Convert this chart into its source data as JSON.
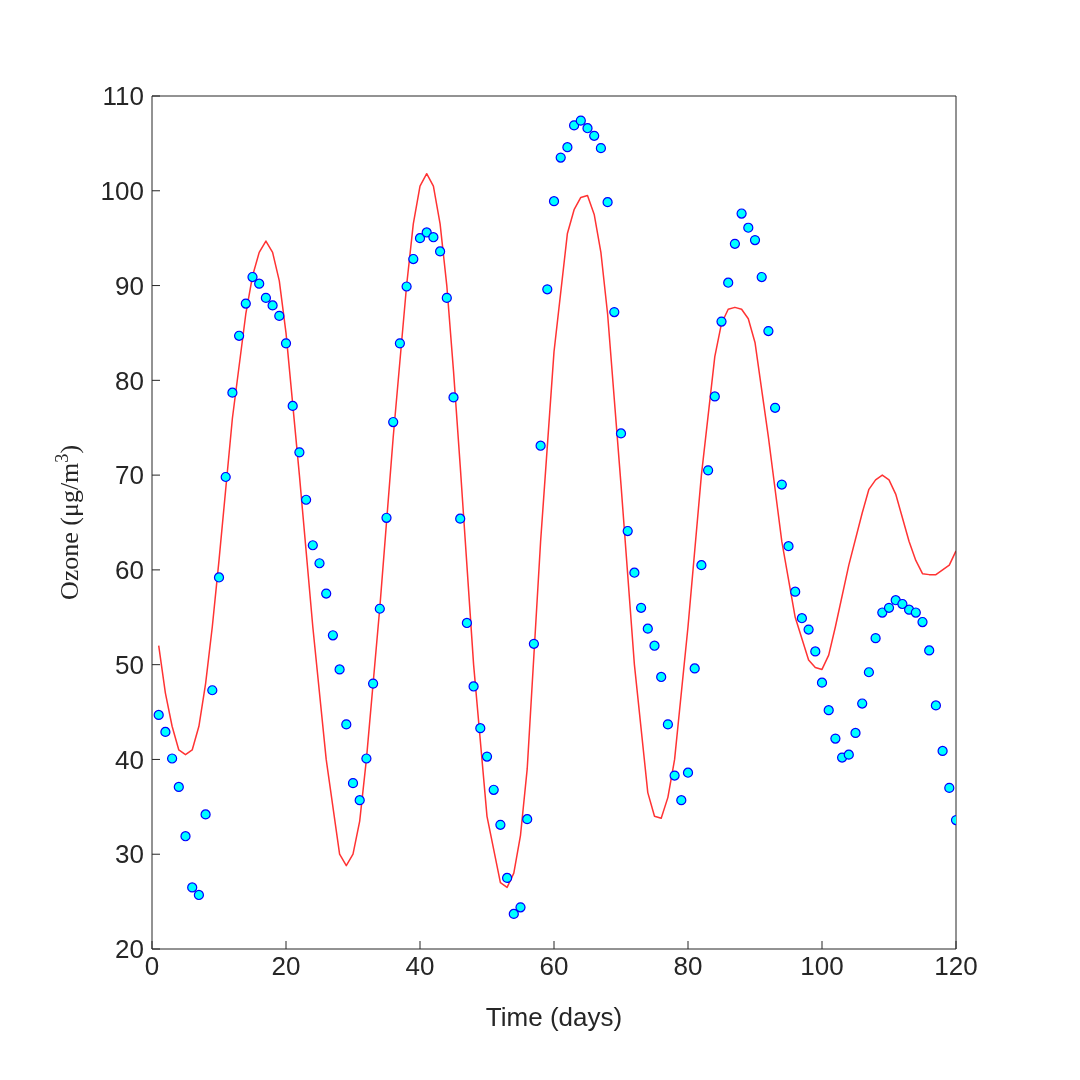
{
  "chart_data": {
    "type": "scatter",
    "xlabel": "Time (days)",
    "ylabel": "Ozone (μg/m$^{3}$)",
    "xlim": [
      0,
      120
    ],
    "xticks": [
      0,
      20,
      40,
      60,
      80,
      100,
      120
    ],
    "ylim": [
      20,
      110
    ],
    "yticks": [
      20,
      30,
      40,
      50,
      60,
      70,
      80,
      90,
      100,
      110
    ],
    "grid": false,
    "marker": "circle",
    "series": [
      {
        "type": "scatter",
        "color": "#00ffff",
        "x": [
          1,
          2,
          3,
          4,
          5,
          6,
          7,
          8,
          9,
          10,
          11,
          12,
          13,
          14,
          15,
          16,
          17,
          18,
          19,
          20,
          21,
          22,
          23,
          24,
          25,
          26,
          27,
          28,
          29,
          30,
          31,
          32,
          33,
          34,
          35,
          36,
          37,
          38,
          39,
          40,
          41,
          42,
          43,
          44,
          45,
          46,
          47,
          48,
          49,
          50,
          51,
          52,
          53,
          54,
          55,
          56,
          57,
          58,
          59,
          60,
          61,
          62,
          63,
          64,
          65,
          66,
          67,
          68,
          69,
          70,
          71,
          72,
          73,
          74,
          75,
          76,
          77,
          78,
          79,
          80,
          81,
          82,
          83,
          84,
          85,
          86,
          87,
          88,
          89,
          90,
          91,
          92,
          93,
          94,
          95,
          96,
          97,
          98,
          99,
          100,
          101,
          102,
          103,
          104,
          105,
          106,
          107,
          108,
          109,
          110,
          111,
          112,
          113,
          114,
          115,
          116,
          117,
          118,
          119,
          120
        ],
        "values": [
          44.7,
          42.9,
          40.1,
          37.1,
          31.9,
          26.5,
          25.7,
          34.2,
          47.3,
          59.2,
          69.8,
          78.7,
          84.7,
          88.1,
          90.9,
          90.2,
          88.7,
          87.9,
          86.8,
          83.9,
          77.3,
          72.4,
          67.4,
          62.6,
          60.7,
          57.5,
          53.1,
          49.5,
          43.7,
          37.5,
          35.7,
          40.1,
          48.0,
          55.9,
          65.5,
          75.6,
          83.9,
          89.9,
          92.8,
          95.0,
          95.6,
          95.1,
          93.6,
          88.7,
          78.2,
          65.4,
          54.4,
          47.7,
          43.3,
          40.3,
          36.8,
          33.1,
          27.5,
          23.7,
          24.4,
          33.7,
          52.2,
          73.1,
          89.6,
          98.9,
          103.5,
          104.6,
          106.9,
          107.4,
          106.6,
          105.8,
          104.5,
          98.8,
          87.2,
          74.4,
          64.1,
          59.7,
          56.0,
          53.8,
          52.0,
          48.7,
          43.7,
          38.3,
          35.7,
          38.6,
          49.6,
          60.5,
          70.5,
          78.3,
          86.2,
          90.3,
          94.4,
          97.6,
          96.1,
          94.8,
          90.9,
          85.2,
          77.1,
          69.0,
          62.5,
          57.7,
          54.9,
          53.7,
          51.4,
          48.1,
          45.2,
          42.2,
          40.2,
          40.5,
          42.8,
          45.9,
          49.2,
          52.8,
          55.5,
          56.0,
          56.8,
          56.4,
          55.8,
          55.5,
          54.5,
          51.5,
          45.7,
          40.9,
          37.0,
          33.6
        ]
      },
      {
        "type": "line",
        "color": "#ff3333",
        "marker": "none",
        "line_style": "solid",
        "x": [
          1,
          2,
          3,
          4,
          5,
          6,
          7,
          8,
          9,
          10,
          12,
          14,
          15,
          16,
          17,
          18,
          19,
          20,
          22,
          24,
          26,
          28,
          29,
          30,
          31,
          32,
          34,
          36,
          38,
          39,
          40,
          41,
          42,
          43,
          44,
          45,
          46,
          48,
          50,
          52,
          53,
          54,
          55,
          56,
          58,
          60,
          62,
          63,
          64,
          65,
          66,
          67,
          68,
          70,
          72,
          74,
          75,
          76,
          77,
          78,
          80,
          82,
          84,
          85,
          86,
          87,
          88,
          89,
          90,
          92,
          94,
          96,
          98,
          99,
          100,
          101,
          102,
          104,
          106,
          107,
          108,
          109,
          110,
          111,
          112,
          113,
          114,
          115,
          116,
          117,
          118,
          119,
          120
        ],
        "values": [
          52,
          47,
          43.5,
          41,
          40.5,
          41,
          43.5,
          48,
          54,
          61,
          76,
          87,
          91,
          93.5,
          94.7,
          93.5,
          90.5,
          85,
          70,
          54,
          40,
          30,
          28.8,
          30,
          33.5,
          40,
          56,
          74,
          90,
          96.5,
          100.5,
          101.8,
          100.5,
          96.5,
          90,
          81,
          71,
          50,
          34,
          27,
          26.5,
          28,
          32,
          39,
          63,
          83,
          95.5,
          98,
          99.3,
          99.5,
          97.5,
          93.5,
          87,
          69,
          50,
          36.5,
          34,
          33.8,
          36,
          40,
          54,
          70,
          82.5,
          86,
          87.5,
          87.7,
          87.5,
          86.5,
          84,
          74,
          63,
          55,
          50.5,
          49.7,
          49.5,
          51,
          54,
          60.5,
          66,
          68.5,
          69.5,
          70,
          69.5,
          68,
          65.5,
          63,
          61,
          59.6,
          59.5,
          59.5,
          60,
          60.5,
          62
        ]
      }
    ]
  }
}
